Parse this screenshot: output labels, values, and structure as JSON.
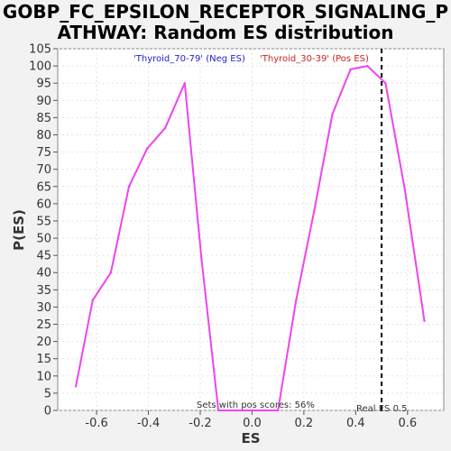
{
  "chart_data": {
    "type": "line",
    "title_line1": "GOBP_FC_EPSILON_RECEPTOR_SIGNALING_P",
    "title_line2": "ATHWAY: Random ES distribution",
    "xlabel": "ES",
    "ylabel": "P(ES)",
    "xlim": [
      -0.75,
      0.74
    ],
    "ylim": [
      0,
      105
    ],
    "x_ticks": [
      -0.6,
      -0.4,
      -0.2,
      0.0,
      0.2,
      0.4,
      0.6
    ],
    "x_tick_labels": [
      "-0.6",
      "-0.4",
      "-0.2",
      "0.0",
      "0.2",
      "0.4",
      "0.6"
    ],
    "y_ticks": [
      0,
      5,
      10,
      15,
      20,
      25,
      30,
      35,
      40,
      45,
      50,
      55,
      60,
      65,
      70,
      75,
      80,
      85,
      90,
      95,
      100,
      105
    ],
    "grid": true,
    "line_color": "#ee44ee",
    "series": [
      {
        "x": [
          -0.68,
          -0.615,
          -0.545,
          -0.475,
          -0.405,
          -0.335,
          -0.26,
          -0.195,
          -0.13,
          -0.065,
          0.0,
          0.05,
          0.1,
          0.17,
          0.24,
          0.31,
          0.38,
          0.445,
          0.515,
          0.59,
          0.665
        ],
        "y": [
          7,
          32,
          40,
          65,
          76,
          82,
          95,
          44,
          0,
          0,
          0,
          0,
          0,
          32,
          58,
          86,
          99,
          100,
          95,
          64,
          26
        ]
      }
    ],
    "legend": {
      "neg_label": "'Thyroid_70-79' (Neg ES)",
      "neg_color": "#2222cc",
      "pos_label": "'Thyroid_30-39' (Pos ES)",
      "pos_color": "#cc2222"
    },
    "real_es": {
      "value": 0.5,
      "label": "Real ES 0.5"
    },
    "annotation": "Sets with pos scores: 56%"
  }
}
